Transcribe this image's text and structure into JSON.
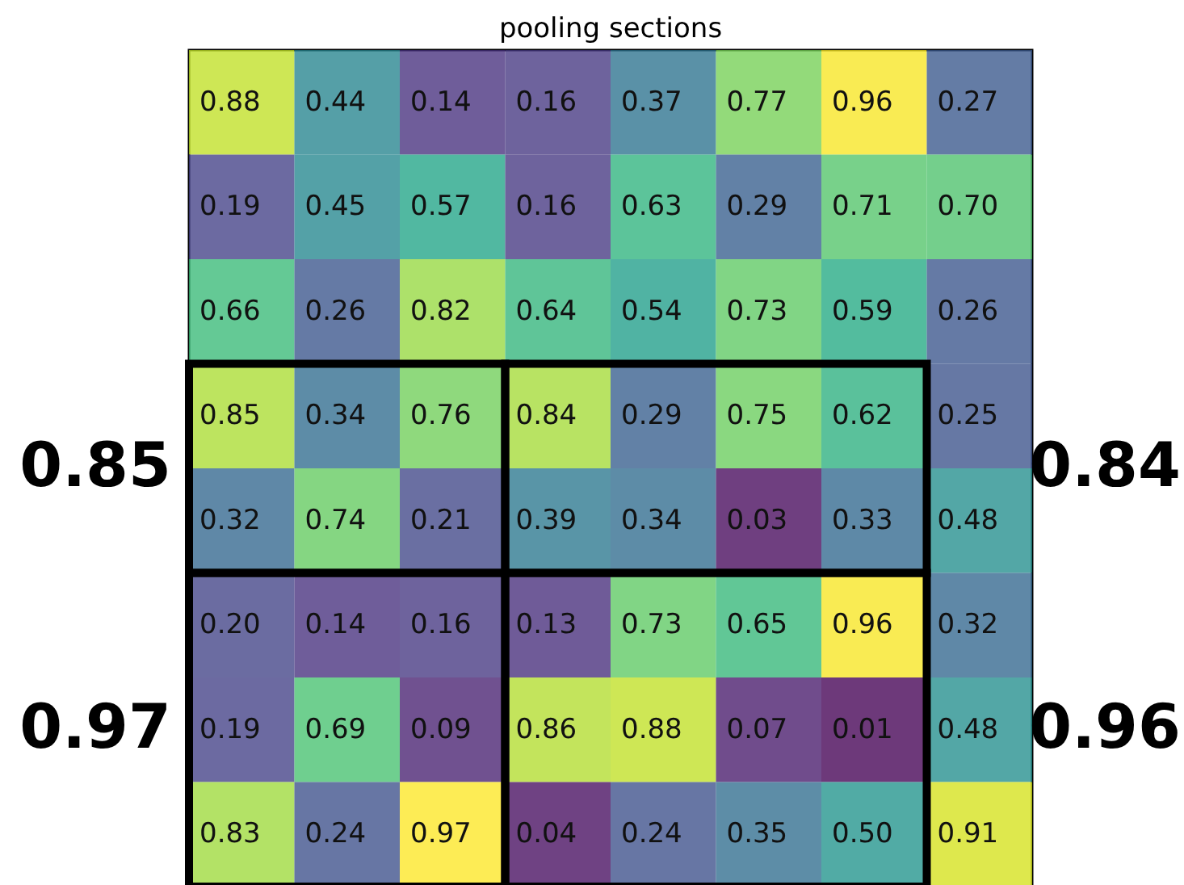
{
  "chart_data": {
    "type": "heatmap",
    "title": "pooling sections",
    "categories": [
      null,
      null,
      null,
      null,
      null,
      null,
      null,
      null
    ],
    "y_categories": [
      null,
      null,
      null,
      null,
      null,
      null,
      null,
      null
    ],
    "cells": [
      [
        0.88,
        0.44,
        0.14,
        0.16,
        0.37,
        0.77,
        0.96,
        0.27
      ],
      [
        0.19,
        0.45,
        0.57,
        0.16,
        0.63,
        0.29,
        0.71,
        0.7
      ],
      [
        0.66,
        0.26,
        0.82,
        0.64,
        0.54,
        0.73,
        0.59,
        0.26
      ],
      [
        0.85,
        0.34,
        0.76,
        0.84,
        0.29,
        0.75,
        0.62,
        0.25
      ],
      [
        0.32,
        0.74,
        0.21,
        0.39,
        0.34,
        0.03,
        0.33,
        0.48
      ],
      [
        0.2,
        0.14,
        0.16,
        0.13,
        0.73,
        0.65,
        0.96,
        0.32
      ],
      [
        0.19,
        0.69,
        0.09,
        0.86,
        0.88,
        0.07,
        0.01,
        0.48
      ],
      [
        0.83,
        0.24,
        0.97,
        0.04,
        0.24,
        0.35,
        0.5,
        0.91
      ]
    ],
    "cell_labels": [
      [
        "0.88",
        "0.44",
        "0.14",
        "0.16",
        "0.37",
        "0.77",
        "0.96",
        "0.27"
      ],
      [
        "0.19",
        "0.45",
        "0.57",
        "0.16",
        "0.63",
        "0.29",
        "0.71",
        "0.70"
      ],
      [
        "0.66",
        "0.26",
        "0.82",
        "0.64",
        "0.54",
        "0.73",
        "0.59",
        "0.26"
      ],
      [
        "0.85",
        "0.34",
        "0.76",
        "0.84",
        "0.29",
        "0.75",
        "0.62",
        "0.25"
      ],
      [
        "0.32",
        "0.74",
        "0.21",
        "0.39",
        "0.34",
        "0.03",
        "0.33",
        "0.48"
      ],
      [
        "0.20",
        "0.14",
        "0.16",
        "0.13",
        "0.73",
        "0.65",
        "0.96",
        "0.32"
      ],
      [
        "0.19",
        "0.69",
        "0.09",
        "0.86",
        "0.88",
        "0.07",
        "0.01",
        "0.48"
      ],
      [
        "0.83",
        "0.24",
        "0.97",
        "0.04",
        "0.24",
        "0.35",
        "0.50",
        "0.91"
      ]
    ],
    "annotations": [
      "0.85",
      "0.84",
      "0.97",
      "0.96"
    ]
  }
}
